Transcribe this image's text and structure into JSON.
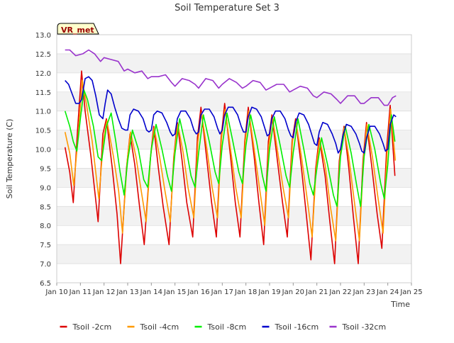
{
  "chart_data": {
    "type": "line",
    "title": "Soil Temperature Set 3",
    "xlabel": "Time",
    "ylabel": "Soil Temperature (C)",
    "badge": "VR_met",
    "xlim": [
      10,
      25
    ],
    "ylim": [
      6.5,
      13.0
    ],
    "x_ticks": [
      {
        "value": 10,
        "label": "Jan 10"
      },
      {
        "value": 11,
        "label": "Jan 11"
      },
      {
        "value": 12,
        "label": "Jan 12"
      },
      {
        "value": 13,
        "label": "Jan 13"
      },
      {
        "value": 14,
        "label": "Jan 14"
      },
      {
        "value": 15,
        "label": "Jan 15"
      },
      {
        "value": 16,
        "label": "Jan 16"
      },
      {
        "value": 17,
        "label": "Jan 17"
      },
      {
        "value": 18,
        "label": "Jan 18"
      },
      {
        "value": 19,
        "label": "Jan 19"
      },
      {
        "value": 20,
        "label": "Jan 20"
      },
      {
        "value": 21,
        "label": "Jan 21"
      },
      {
        "value": 22,
        "label": "Jan 22"
      },
      {
        "value": 23,
        "label": "Jan 23"
      },
      {
        "value": 24,
        "label": "Jan 24"
      },
      {
        "value": 25,
        "label": "Jan 25"
      }
    ],
    "y_ticks": [
      {
        "value": 6.5,
        "label": "6.5"
      },
      {
        "value": 7.0,
        "label": "7.0"
      },
      {
        "value": 7.5,
        "label": "7.5"
      },
      {
        "value": 8.0,
        "label": "8.0"
      },
      {
        "value": 8.5,
        "label": "8.5"
      },
      {
        "value": 9.0,
        "label": "9.0"
      },
      {
        "value": 9.5,
        "label": "9.5"
      },
      {
        "value": 10.0,
        "label": "10.0"
      },
      {
        "value": 10.5,
        "label": "10.5"
      },
      {
        "value": 11.0,
        "label": "11.0"
      },
      {
        "value": 11.5,
        "label": "11.5"
      },
      {
        "value": 12.0,
        "label": "12.0"
      },
      {
        "value": 12.5,
        "label": "12.5"
      },
      {
        "value": 13.0,
        "label": "13.0"
      }
    ],
    "grid": true,
    "legend_position": "bottom",
    "series": [
      {
        "name": "Tsoil -2cm",
        "color": "#dd0000",
        "x": [
          10.35,
          10.55,
          10.7,
          10.88,
          11.05,
          11.2,
          11.45,
          11.75,
          11.95,
          12.1,
          12.35,
          12.55,
          12.7,
          12.95,
          13.1,
          13.3,
          13.5,
          13.7,
          13.95,
          14.1,
          14.3,
          14.5,
          14.75,
          14.95,
          15.1,
          15.3,
          15.5,
          15.75,
          15.95,
          16.1,
          16.35,
          16.55,
          16.75,
          16.95,
          17.1,
          17.35,
          17.55,
          17.75,
          17.95,
          18.1,
          18.35,
          18.55,
          18.75,
          18.95,
          19.1,
          19.35,
          19.55,
          19.75,
          19.95,
          20.1,
          20.35,
          20.55,
          20.75,
          20.95,
          21.1,
          21.35,
          21.55,
          21.75,
          21.95,
          22.15,
          22.35,
          22.55,
          22.75,
          22.95,
          23.1,
          23.35,
          23.55,
          23.75,
          23.95,
          24.1,
          24.3
        ],
        "y": [
          10.05,
          9.4,
          8.6,
          10.5,
          12.05,
          11.0,
          9.8,
          8.1,
          10.4,
          10.8,
          9.5,
          8.3,
          7.0,
          9.5,
          10.4,
          9.6,
          8.5,
          7.5,
          9.7,
          10.6,
          9.5,
          8.5,
          7.5,
          9.8,
          10.7,
          9.7,
          8.6,
          7.7,
          10.3,
          11.1,
          9.7,
          8.6,
          7.7,
          10.3,
          11.2,
          9.8,
          8.6,
          7.7,
          10.2,
          11.1,
          9.8,
          8.6,
          7.5,
          10.2,
          10.9,
          9.6,
          8.6,
          7.7,
          10.2,
          10.8,
          9.5,
          8.3,
          7.1,
          9.5,
          10.3,
          9.3,
          8.1,
          7.0,
          9.7,
          10.6,
          9.5,
          8.2,
          7.0,
          9.7,
          10.7,
          9.4,
          8.3,
          7.4,
          10.0,
          11.15,
          9.3
        ]
      },
      {
        "name": "Tsoil -4cm",
        "color": "#ff9900",
        "x": [
          10.35,
          10.55,
          10.72,
          10.9,
          11.08,
          11.25,
          11.5,
          11.78,
          11.97,
          12.12,
          12.4,
          12.62,
          12.78,
          12.98,
          13.12,
          13.35,
          13.55,
          13.78,
          13.97,
          14.12,
          14.35,
          14.55,
          14.8,
          14.97,
          15.12,
          15.35,
          15.55,
          15.8,
          15.97,
          16.12,
          16.35,
          16.57,
          16.8,
          16.97,
          17.12,
          17.35,
          17.57,
          17.8,
          17.97,
          18.12,
          18.35,
          18.57,
          18.8,
          18.97,
          19.12,
          19.35,
          19.57,
          19.8,
          19.97,
          20.12,
          20.35,
          20.57,
          20.8,
          20.97,
          21.12,
          21.35,
          21.57,
          21.8,
          21.97,
          22.15,
          22.35,
          22.57,
          22.8,
          22.97,
          23.12,
          23.35,
          23.57,
          23.8,
          23.97,
          24.12,
          24.32
        ],
        "y": [
          10.45,
          9.9,
          9.05,
          10.3,
          11.8,
          11.2,
          10.2,
          8.7,
          10.2,
          10.75,
          9.8,
          8.9,
          7.8,
          9.7,
          10.45,
          9.8,
          9.0,
          8.1,
          9.8,
          10.55,
          9.8,
          9.0,
          8.1,
          9.9,
          10.65,
          9.9,
          9.0,
          8.2,
          10.2,
          10.95,
          10.0,
          9.0,
          8.2,
          10.3,
          11.05,
          10.0,
          9.0,
          8.2,
          10.2,
          11.0,
          10.0,
          9.0,
          8.0,
          10.1,
          10.85,
          9.9,
          9.0,
          8.2,
          10.2,
          10.7,
          9.8,
          8.8,
          7.7,
          9.5,
          10.25,
          9.6,
          8.5,
          7.6,
          9.7,
          10.55,
          9.8,
          8.7,
          7.6,
          9.7,
          10.65,
          9.8,
          8.8,
          7.8,
          9.9,
          11.05,
          9.7
        ]
      },
      {
        "name": "Tsoil -8cm",
        "color": "#00ee00",
        "x": [
          10.35,
          10.55,
          10.7,
          10.85,
          11.0,
          11.15,
          11.3,
          11.55,
          11.75,
          11.9,
          12.1,
          12.3,
          12.5,
          12.68,
          12.85,
          13.0,
          13.2,
          13.45,
          13.68,
          13.85,
          14.0,
          14.2,
          14.45,
          14.68,
          14.85,
          15.0,
          15.2,
          15.45,
          15.68,
          15.85,
          16.0,
          16.2,
          16.45,
          16.7,
          16.85,
          17.0,
          17.2,
          17.45,
          17.7,
          17.85,
          18.0,
          18.2,
          18.45,
          18.7,
          18.85,
          19.0,
          19.2,
          19.45,
          19.7,
          19.85,
          20.0,
          20.2,
          20.45,
          20.7,
          20.85,
          21.0,
          21.2,
          21.45,
          21.7,
          21.85,
          22.0,
          22.2,
          22.45,
          22.7,
          22.85,
          23.0,
          23.2,
          23.45,
          23.7,
          23.85,
          24.0,
          24.15,
          24.3
        ],
        "y": [
          11.0,
          10.6,
          10.2,
          9.95,
          10.8,
          11.55,
          11.3,
          10.6,
          9.8,
          9.7,
          10.6,
          10.95,
          10.2,
          9.4,
          8.8,
          9.7,
          10.5,
          10.0,
          9.2,
          9.0,
          10.0,
          10.65,
          10.0,
          9.3,
          8.9,
          9.9,
          10.8,
          10.1,
          9.3,
          9.0,
          9.9,
          10.9,
          10.2,
          9.4,
          9.1,
          10.1,
          10.95,
          10.2,
          9.4,
          9.1,
          10.1,
          10.9,
          10.2,
          9.3,
          8.9,
          10.0,
          10.85,
          10.1,
          9.3,
          9.0,
          9.9,
          10.8,
          10.0,
          9.1,
          8.8,
          9.5,
          10.3,
          9.6,
          8.8,
          8.5,
          9.8,
          10.6,
          9.9,
          9.0,
          8.5,
          9.8,
          10.65,
          10.0,
          9.1,
          8.7,
          9.6,
          10.9,
          10.2
        ]
      },
      {
        "name": "Tsoil -16cm",
        "color": "#0000cc",
        "x": [
          10.35,
          10.5,
          10.65,
          10.8,
          10.95,
          11.05,
          11.2,
          11.35,
          11.5,
          11.65,
          11.8,
          11.95,
          12.05,
          12.15,
          12.3,
          12.45,
          12.6,
          12.75,
          12.9,
          13.0,
          13.1,
          13.25,
          13.45,
          13.65,
          13.8,
          13.9,
          14.0,
          14.1,
          14.25,
          14.45,
          14.65,
          14.8,
          14.9,
          15.0,
          15.1,
          15.25,
          15.45,
          15.65,
          15.8,
          15.9,
          16.0,
          16.1,
          16.25,
          16.45,
          16.65,
          16.8,
          16.9,
          17.0,
          17.1,
          17.25,
          17.45,
          17.65,
          17.8,
          17.9,
          18.0,
          18.1,
          18.25,
          18.45,
          18.65,
          18.8,
          18.9,
          19.0,
          19.1,
          19.25,
          19.45,
          19.65,
          19.8,
          19.9,
          20.0,
          20.1,
          20.25,
          20.45,
          20.65,
          20.8,
          20.9,
          21.0,
          21.1,
          21.25,
          21.45,
          21.65,
          21.8,
          21.9,
          22.0,
          22.1,
          22.25,
          22.45,
          22.65,
          22.8,
          22.9,
          23.0,
          23.1,
          23.25,
          23.45,
          23.65,
          23.8,
          23.9,
          24.0,
          24.1,
          24.25,
          24.35
        ],
        "y": [
          11.8,
          11.7,
          11.45,
          11.2,
          11.2,
          11.3,
          11.85,
          11.9,
          11.8,
          11.4,
          10.9,
          10.8,
          11.2,
          11.55,
          11.45,
          11.1,
          10.8,
          10.55,
          10.5,
          10.5,
          10.9,
          11.05,
          11.0,
          10.8,
          10.5,
          10.45,
          10.5,
          10.9,
          11.0,
          10.95,
          10.7,
          10.45,
          10.35,
          10.4,
          10.8,
          11.0,
          11.0,
          10.8,
          10.5,
          10.4,
          10.45,
          10.9,
          11.05,
          11.05,
          10.85,
          10.55,
          10.4,
          10.5,
          10.9,
          11.1,
          11.1,
          10.9,
          10.6,
          10.45,
          10.45,
          10.85,
          11.1,
          11.05,
          10.85,
          10.55,
          10.35,
          10.4,
          10.8,
          11.0,
          11.0,
          10.8,
          10.5,
          10.35,
          10.3,
          10.7,
          10.95,
          10.9,
          10.65,
          10.35,
          10.15,
          10.1,
          10.45,
          10.7,
          10.65,
          10.4,
          10.15,
          9.9,
          10.0,
          10.35,
          10.65,
          10.6,
          10.4,
          10.15,
          9.95,
          9.9,
          10.3,
          10.6,
          10.6,
          10.4,
          10.15,
          9.95,
          10.0,
          10.65,
          10.9,
          10.85
        ]
      },
      {
        "name": "Tsoil -32cm",
        "color": "#9933cc",
        "x": [
          10.35,
          10.55,
          10.8,
          11.1,
          11.35,
          11.6,
          11.85,
          12.0,
          12.3,
          12.6,
          12.85,
          13.0,
          13.3,
          13.6,
          13.85,
          14.0,
          14.3,
          14.6,
          14.85,
          15.0,
          15.3,
          15.6,
          15.85,
          16.0,
          16.3,
          16.6,
          16.85,
          17.0,
          17.3,
          17.6,
          17.85,
          18.0,
          18.3,
          18.6,
          18.85,
          19.0,
          19.3,
          19.6,
          19.85,
          20.0,
          20.3,
          20.6,
          20.85,
          21.0,
          21.3,
          21.6,
          21.85,
          22.0,
          22.3,
          22.6,
          22.85,
          23.0,
          23.3,
          23.6,
          23.85,
          24.0,
          24.2,
          24.35
        ],
        "y": [
          12.6,
          12.6,
          12.45,
          12.5,
          12.6,
          12.5,
          12.3,
          12.4,
          12.35,
          12.3,
          12.05,
          12.1,
          12.0,
          12.05,
          11.85,
          11.9,
          11.9,
          11.95,
          11.75,
          11.65,
          11.85,
          11.8,
          11.7,
          11.6,
          11.85,
          11.8,
          11.6,
          11.7,
          11.85,
          11.75,
          11.6,
          11.65,
          11.8,
          11.75,
          11.55,
          11.6,
          11.7,
          11.7,
          11.5,
          11.55,
          11.65,
          11.6,
          11.4,
          11.35,
          11.5,
          11.45,
          11.3,
          11.2,
          11.4,
          11.4,
          11.2,
          11.2,
          11.35,
          11.35,
          11.15,
          11.15,
          11.35,
          11.4
        ]
      }
    ]
  }
}
